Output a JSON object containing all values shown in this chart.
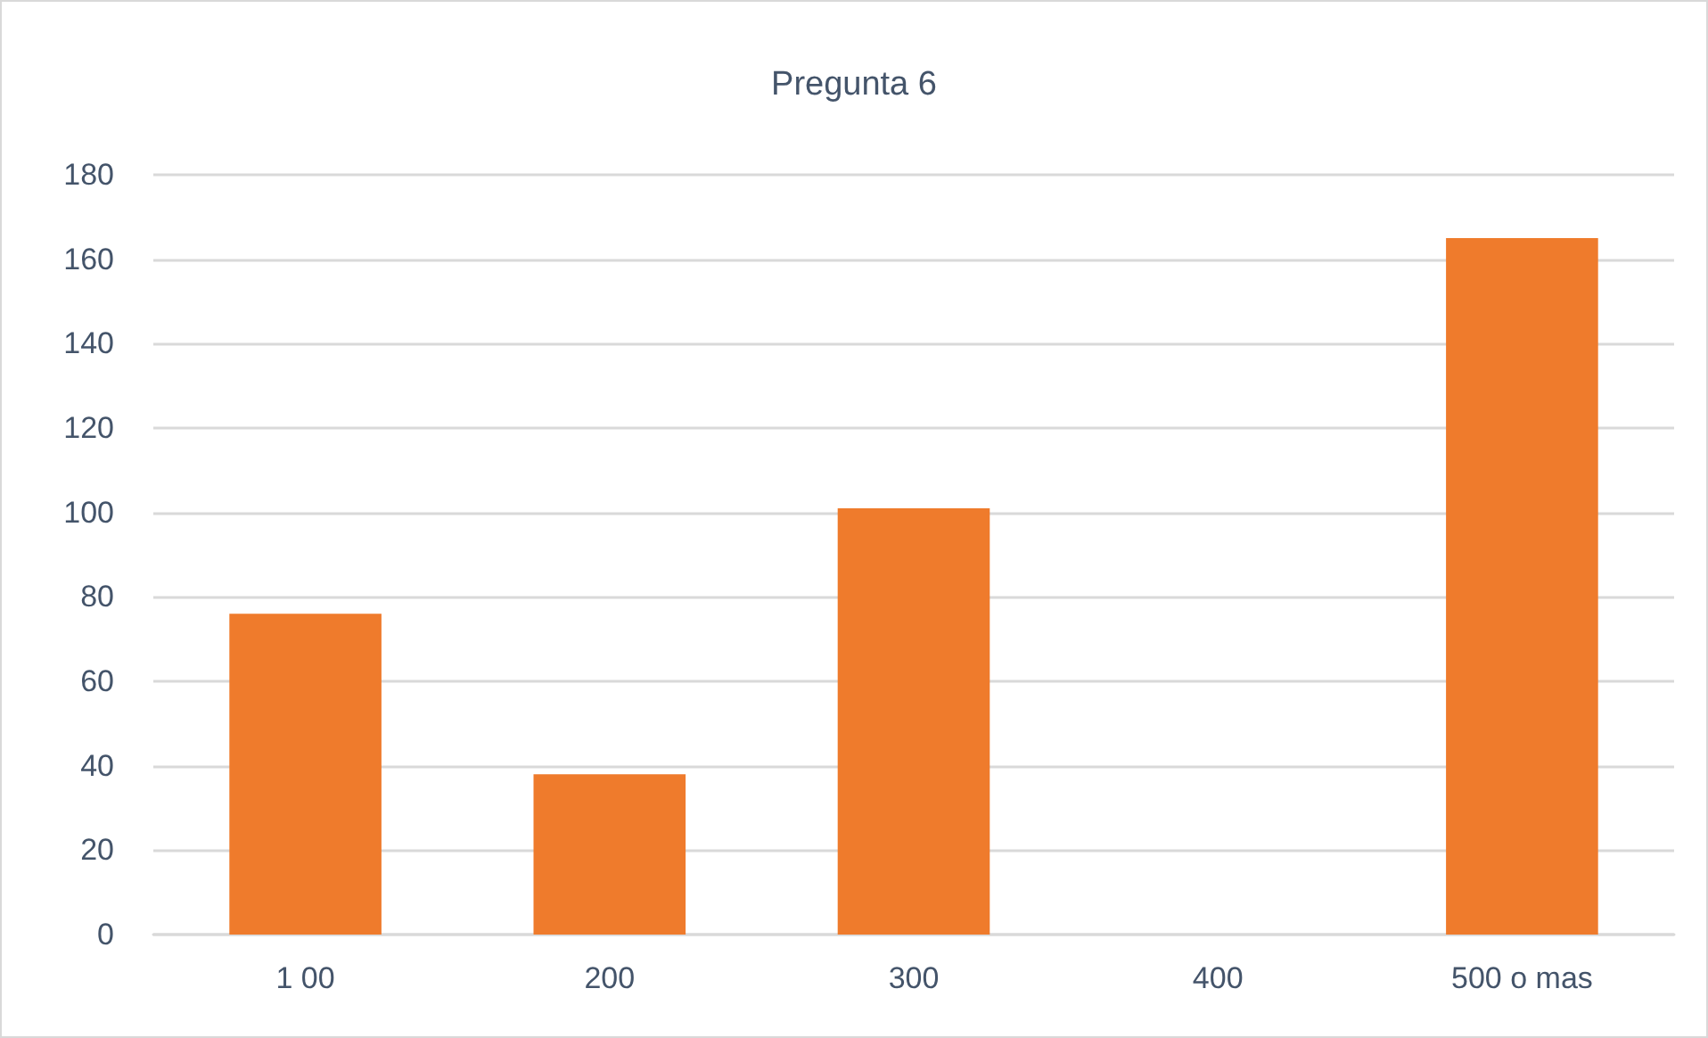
{
  "chart_data": {
    "type": "bar",
    "title": "Pregunta 6",
    "categories": [
      "1 00",
      "200",
      "300",
      "400",
      "500 o mas"
    ],
    "values": [
      76,
      38,
      101,
      0,
      165
    ],
    "color": "#ef7b2c",
    "ylim": [
      0,
      180
    ],
    "yticks": [
      0,
      20,
      40,
      60,
      80,
      100,
      120,
      140,
      160,
      180
    ],
    "grid": true
  }
}
